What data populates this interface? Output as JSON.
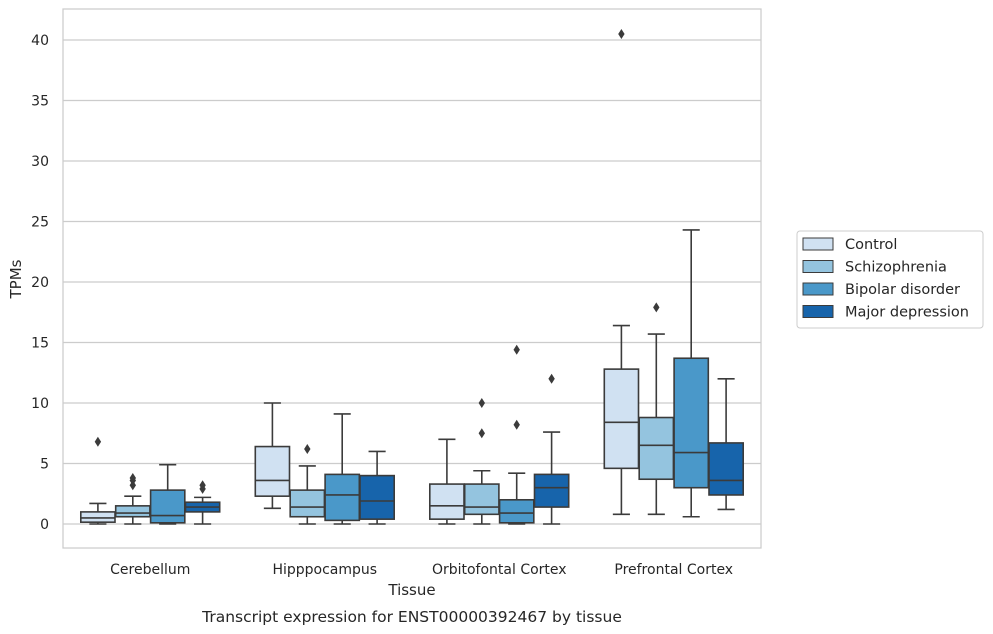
{
  "chart_data": {
    "type": "box",
    "title": "",
    "caption": "Transcript expression for ENST00000392467 by tissue",
    "xlabel": "Tissue",
    "ylabel": "TPMs",
    "ylim": [
      -2,
      42.5
    ],
    "yticks": [
      0,
      5,
      10,
      15,
      20,
      25,
      30,
      35,
      40
    ],
    "grid": true,
    "legend_position": "right",
    "categories": [
      "Cerebellum",
      "Hipppocampus",
      "Orbitofontal Cortex",
      "Prefrontal Cortex"
    ],
    "series": [
      {
        "name": "Control",
        "color": "#d0e1f2",
        "boxes": [
          {
            "whislo": 0.0,
            "q1": 0.15,
            "med": 0.5,
            "q3": 1.0,
            "whishi": 1.7,
            "fliers": [
              6.8
            ]
          },
          {
            "whislo": 1.3,
            "q1": 2.3,
            "med": 3.6,
            "q3": 6.4,
            "whishi": 10.0,
            "fliers": []
          },
          {
            "whislo": 0.0,
            "q1": 0.4,
            "med": 1.5,
            "q3": 3.3,
            "whishi": 7.0,
            "fliers": []
          },
          {
            "whislo": 0.8,
            "q1": 4.6,
            "med": 8.4,
            "q3": 12.8,
            "whishi": 16.4,
            "fliers": [
              40.5
            ]
          }
        ]
      },
      {
        "name": "Schizophrenia",
        "color": "#94c4df",
        "boxes": [
          {
            "whislo": 0.0,
            "q1": 0.6,
            "med": 0.9,
            "q3": 1.5,
            "whishi": 2.3,
            "fliers": [
              3.2,
              3.6,
              3.8
            ]
          },
          {
            "whislo": 0.0,
            "q1": 0.6,
            "med": 1.4,
            "q3": 2.8,
            "whishi": 4.8,
            "fliers": [
              6.2
            ]
          },
          {
            "whislo": 0.0,
            "q1": 0.8,
            "med": 1.4,
            "q3": 3.3,
            "whishi": 4.4,
            "fliers": [
              7.5,
              10.0
            ]
          },
          {
            "whislo": 0.8,
            "q1": 3.7,
            "med": 6.5,
            "q3": 8.8,
            "whishi": 15.7,
            "fliers": [
              17.9
            ]
          }
        ]
      },
      {
        "name": "Bipolar disorder",
        "color": "#4a98c9",
        "boxes": [
          {
            "whislo": 0.0,
            "q1": 0.1,
            "med": 0.7,
            "q3": 2.8,
            "whishi": 4.9,
            "fliers": []
          },
          {
            "whislo": 0.0,
            "q1": 0.3,
            "med": 2.4,
            "q3": 4.1,
            "whishi": 9.1,
            "fliers": []
          },
          {
            "whislo": 0.0,
            "q1": 0.1,
            "med": 0.9,
            "q3": 2.0,
            "whishi": 4.2,
            "fliers": [
              8.2,
              14.4
            ]
          },
          {
            "whislo": 0.6,
            "q1": 3.0,
            "med": 5.9,
            "q3": 13.7,
            "whishi": 24.3,
            "fliers": []
          }
        ]
      },
      {
        "name": "Major depression",
        "color": "#1764ab",
        "boxes": [
          {
            "whislo": 0.0,
            "q1": 1.0,
            "med": 1.4,
            "q3": 1.8,
            "whishi": 2.2,
            "fliers": [
              2.9,
              3.2
            ]
          },
          {
            "whislo": 0.0,
            "q1": 0.4,
            "med": 1.9,
            "q3": 4.0,
            "whishi": 6.0,
            "fliers": []
          },
          {
            "whislo": 0.0,
            "q1": 1.4,
            "med": 3.0,
            "q3": 4.1,
            "whishi": 7.6,
            "fliers": [
              12.0
            ]
          },
          {
            "whislo": 1.2,
            "q1": 2.4,
            "med": 3.6,
            "q3": 6.7,
            "whishi": 12.0,
            "fliers": []
          }
        ]
      }
    ]
  }
}
